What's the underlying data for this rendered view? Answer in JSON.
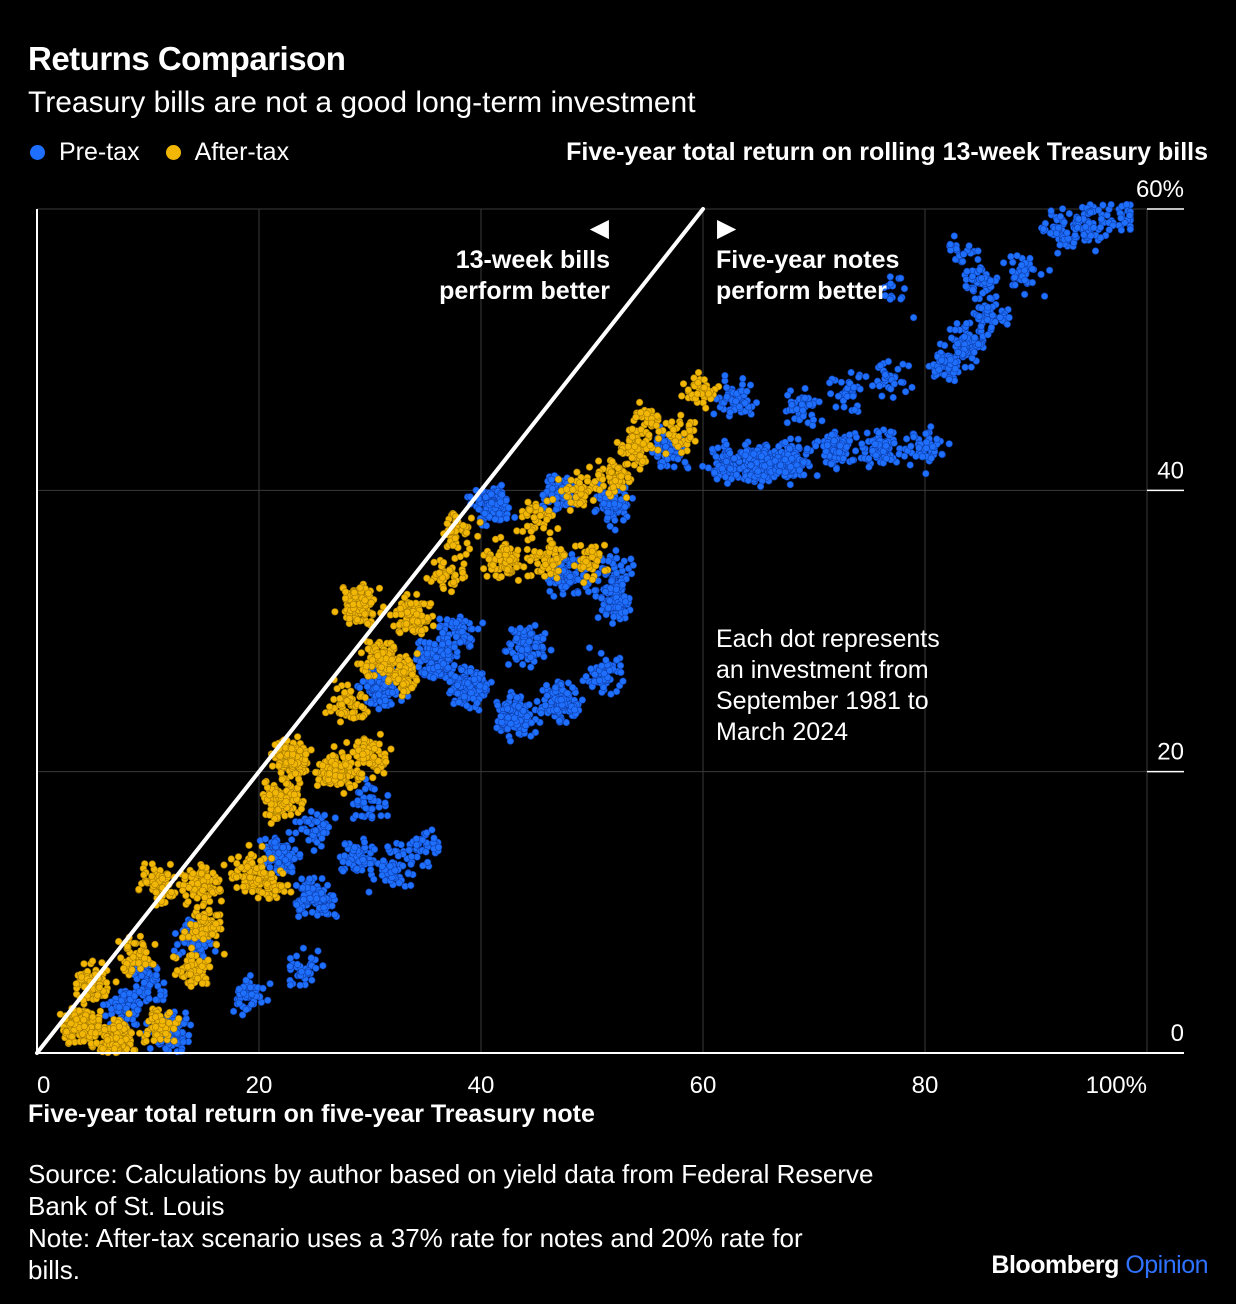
{
  "title": "Returns Comparison",
  "subtitle": "Treasury bills are not a good long-term investment",
  "legend": [
    {
      "label": "Pre-tax",
      "color": "#1f6fff"
    },
    {
      "label": "After-tax",
      "color": "#f2b705"
    }
  ],
  "source_line1": "Source: Calculations by author based on yield data from Federal Reserve",
  "source_line2": "Bank of St. Louis",
  "note_line1": "Note: After-tax scenario uses a 37% rate for notes and 20% rate for",
  "note_line2": "bills.",
  "brand": {
    "part1": "Bloomberg",
    "part2": "Opinion"
  },
  "annotations": {
    "left_arrow": "◀",
    "right_arrow": "▶",
    "bills_line1": "13-week bills",
    "bills_line2": "perform better",
    "notes_line1": "Five-year notes",
    "notes_line2": "perform better",
    "dot_line1": "Each dot represents",
    "dot_line2": "an investment from",
    "dot_line3": "September 1981 to",
    "dot_line4": "March 2024"
  },
  "chart_data": {
    "type": "scatter",
    "title": "Returns Comparison",
    "subtitle": "Treasury bills are not a good long-term investment",
    "xlabel": "Five-year total return on five-year Treasury note",
    "ylabel": "Five-year total return on rolling 13-week Treasury bills",
    "xlim": [
      0,
      100
    ],
    "ylim": [
      0,
      60
    ],
    "x_ticks": [
      "0",
      "20",
      "40",
      "60",
      "80",
      "100%"
    ],
    "y_ticks": [
      "0",
      "20",
      "40",
      "60%"
    ],
    "reference_line": {
      "from": [
        0,
        0
      ],
      "to": [
        60,
        60
      ]
    },
    "grid": true,
    "legend_position": "top-left",
    "series": [
      {
        "name": "Pre-tax",
        "color": "#1f6fff",
        "clusters": [
          {
            "x": 12,
            "y": 1.5,
            "n": 120
          },
          {
            "x": 8,
            "y": 3,
            "n": 80
          },
          {
            "x": 10,
            "y": 5,
            "n": 60
          },
          {
            "x": 14,
            "y": 8,
            "n": 70
          },
          {
            "x": 19,
            "y": 4,
            "n": 50
          },
          {
            "x": 24,
            "y": 6,
            "n": 40
          },
          {
            "x": 25,
            "y": 11,
            "n": 100
          },
          {
            "x": 22,
            "y": 14,
            "n": 100
          },
          {
            "x": 25,
            "y": 16,
            "n": 40
          },
          {
            "x": 29,
            "y": 14,
            "n": 60
          },
          {
            "x": 32,
            "y": 13,
            "n": 60
          },
          {
            "x": 35,
            "y": 14.5,
            "n": 40
          },
          {
            "x": 30,
            "y": 18,
            "n": 40
          },
          {
            "x": 31,
            "y": 26,
            "n": 150
          },
          {
            "x": 36,
            "y": 28,
            "n": 180
          },
          {
            "x": 39,
            "y": 26,
            "n": 150
          },
          {
            "x": 43,
            "y": 24,
            "n": 150
          },
          {
            "x": 47,
            "y": 25,
            "n": 120
          },
          {
            "x": 44,
            "y": 29,
            "n": 80
          },
          {
            "x": 51,
            "y": 27,
            "n": 60
          },
          {
            "x": 38,
            "y": 30,
            "n": 60
          },
          {
            "x": 41,
            "y": 39,
            "n": 120
          },
          {
            "x": 47,
            "y": 40,
            "n": 80
          },
          {
            "x": 52,
            "y": 39,
            "n": 80
          },
          {
            "x": 48,
            "y": 34,
            "n": 80
          },
          {
            "x": 52,
            "y": 32,
            "n": 80
          },
          {
            "x": 52,
            "y": 34,
            "n": 50
          },
          {
            "x": 57,
            "y": 43,
            "n": 80
          },
          {
            "x": 62,
            "y": 42,
            "n": 80
          },
          {
            "x": 65,
            "y": 42,
            "n": 160
          },
          {
            "x": 68,
            "y": 42,
            "n": 120
          },
          {
            "x": 72,
            "y": 43,
            "n": 80
          },
          {
            "x": 76,
            "y": 43,
            "n": 80
          },
          {
            "x": 80,
            "y": 43,
            "n": 50
          },
          {
            "x": 63,
            "y": 46.5,
            "n": 60
          },
          {
            "x": 69,
            "y": 46,
            "n": 40
          },
          {
            "x": 73,
            "y": 47,
            "n": 40
          },
          {
            "x": 77,
            "y": 48,
            "n": 30
          },
          {
            "x": 82,
            "y": 49,
            "n": 60
          },
          {
            "x": 84,
            "y": 50.5,
            "n": 70
          },
          {
            "x": 86,
            "y": 52.5,
            "n": 50
          },
          {
            "x": 85,
            "y": 55,
            "n": 40
          },
          {
            "x": 89,
            "y": 55.5,
            "n": 40
          },
          {
            "x": 92,
            "y": 58.5,
            "n": 50
          },
          {
            "x": 95,
            "y": 59,
            "n": 60
          },
          {
            "x": 98,
            "y": 59.5,
            "n": 30
          },
          {
            "x": 83,
            "y": 57,
            "n": 20
          },
          {
            "x": 77,
            "y": 54,
            "n": 15
          }
        ]
      },
      {
        "name": "After-tax",
        "color": "#f2b705",
        "clusters": [
          {
            "x": 4,
            "y": 2,
            "n": 150
          },
          {
            "x": 7,
            "y": 1,
            "n": 150
          },
          {
            "x": 11,
            "y": 2,
            "n": 60
          },
          {
            "x": 5,
            "y": 5,
            "n": 80
          },
          {
            "x": 9,
            "y": 7,
            "n": 50
          },
          {
            "x": 14,
            "y": 6,
            "n": 60
          },
          {
            "x": 15,
            "y": 9,
            "n": 80
          },
          {
            "x": 11,
            "y": 12,
            "n": 80
          },
          {
            "x": 15,
            "y": 12,
            "n": 80
          },
          {
            "x": 19,
            "y": 13,
            "n": 60
          },
          {
            "x": 21,
            "y": 12,
            "n": 60
          },
          {
            "x": 22,
            "y": 18,
            "n": 120
          },
          {
            "x": 23,
            "y": 21,
            "n": 160
          },
          {
            "x": 27,
            "y": 20,
            "n": 120
          },
          {
            "x": 30,
            "y": 21,
            "n": 80
          },
          {
            "x": 28,
            "y": 25,
            "n": 60
          },
          {
            "x": 31,
            "y": 28,
            "n": 100
          },
          {
            "x": 29,
            "y": 32,
            "n": 120
          },
          {
            "x": 34,
            "y": 31,
            "n": 100
          },
          {
            "x": 33,
            "y": 27,
            "n": 60
          },
          {
            "x": 37,
            "y": 34,
            "n": 40
          },
          {
            "x": 38,
            "y": 37,
            "n": 50
          },
          {
            "x": 42,
            "y": 35,
            "n": 80
          },
          {
            "x": 46,
            "y": 35,
            "n": 60
          },
          {
            "x": 50,
            "y": 35,
            "n": 40
          },
          {
            "x": 45,
            "y": 38,
            "n": 40
          },
          {
            "x": 49,
            "y": 40,
            "n": 50
          },
          {
            "x": 52,
            "y": 41,
            "n": 60
          },
          {
            "x": 54,
            "y": 43,
            "n": 60
          },
          {
            "x": 58,
            "y": 44,
            "n": 40
          },
          {
            "x": 60,
            "y": 47,
            "n": 40
          },
          {
            "x": 55,
            "y": 45,
            "n": 30
          }
        ]
      }
    ]
  }
}
